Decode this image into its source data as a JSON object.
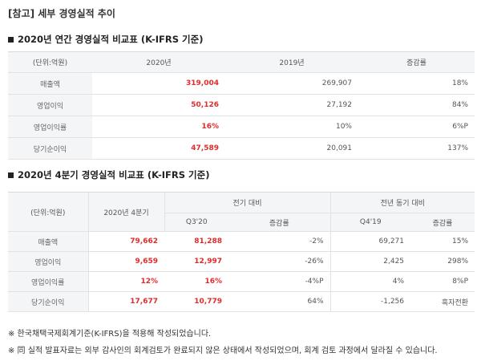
{
  "page_title": "[참고] 세부 경영실적 추이",
  "section1": {
    "title": "2020년 연간 경영실적 비교표 (K-IFRS 기준)",
    "headers": [
      "(단위:억원)",
      "2020년",
      "2019년",
      "증감률"
    ],
    "rows": [
      {
        "label": "매출액",
        "v2020": "319,004",
        "v2019": "269,907",
        "rate": "18%"
      },
      {
        "label": "영업이익",
        "v2020": "50,126",
        "v2019": "27,192",
        "rate": "84%"
      },
      {
        "label": "영업이익률",
        "v2020": "16%",
        "v2019": "10%",
        "rate": "6%P"
      },
      {
        "label": "당기순이익",
        "v2020": "47,589",
        "v2019": "20,091",
        "rate": "137%"
      }
    ]
  },
  "section2": {
    "title": "2020년 4분기 경영실적 비교표 (K-IFRS 기준)",
    "headers": {
      "unit": "(단위:억원)",
      "q4": "2020년 4분기",
      "qoq": "전기 대비",
      "yoy": "전년 동기 대비",
      "q3": "Q3'20",
      "qoq_rate": "증감률",
      "q4_19": "Q4'19",
      "yoy_rate": "증감률"
    },
    "rows": [
      {
        "label": "매출액",
        "q4": "79,662",
        "q3": "81,288",
        "qoq_rate": "-2%",
        "q4_19": "69,271",
        "yoy_rate": "15%"
      },
      {
        "label": "영업이익",
        "q4": "9,659",
        "q3": "12,997",
        "qoq_rate": "-26%",
        "q4_19": "2,425",
        "yoy_rate": "298%"
      },
      {
        "label": "영업이익률",
        "q4": "12%",
        "q3": "16%",
        "qoq_rate": "-4%P",
        "q4_19": "4%",
        "yoy_rate": "8%P"
      },
      {
        "label": "당기순이익",
        "q4": "17,677",
        "q3": "10,779",
        "qoq_rate": "64%",
        "q4_19": "-1,256",
        "yoy_rate": "흑자전환"
      }
    ]
  },
  "notes": [
    "※ 한국채택국제회계기준(K-IFRS)을 적용해 작성되었습니다.",
    "※ 同 실적 발표자료는 외부 감사인의 회계검토가 완료되지 않은 상태에서 작성되었으며, 회계 검토 과정에서 달라질 수 있습니다."
  ],
  "colors": {
    "highlight": "#e12b2b",
    "header_bg": "#f4f5f7",
    "border": "#e2e2e2"
  }
}
